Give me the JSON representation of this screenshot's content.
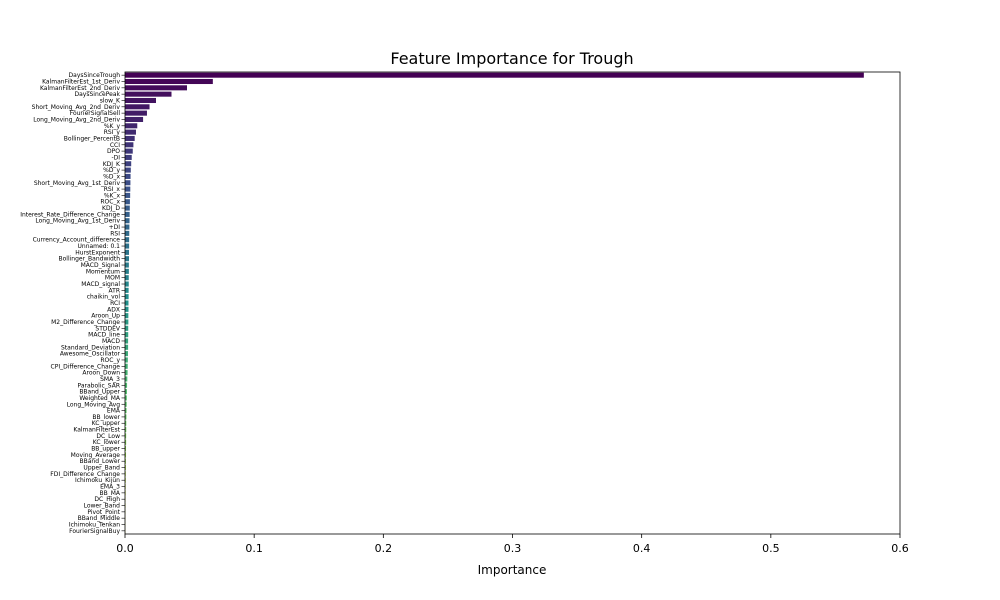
{
  "chart_data": {
    "type": "bar",
    "orientation": "horizontal",
    "title": "Feature Importance for Trough",
    "xlabel": "Importance",
    "ylabel": "",
    "xlim": [
      0,
      0.6
    ],
    "xticks": [
      "0.0",
      "0.1",
      "0.2",
      "0.3",
      "0.4",
      "0.5",
      "0.6"
    ],
    "grid": false,
    "colormap": "viridis",
    "categories": [
      "DaysSinceTrough",
      "KalmanFilterEst_1st_Deriv",
      "KalmanFilterEst_2nd_Deriv",
      "DaysSincePeak",
      "slow_K",
      "Short_Moving_Avg_2nd_Deriv",
      "FourierSignalSell",
      "Long_Moving_Avg_2nd_Deriv",
      "%K_y",
      "RSI_y",
      "Bollinger_PercentB",
      "CCI",
      "DPO",
      "-DI",
      "KDJ_K",
      "%D_y",
      "%D_x",
      "Short_Moving_Avg_1st_Deriv",
      "RSI_x",
      "%K_x",
      "ROC_x",
      "KDJ_D",
      "Interest_Rate_Difference_Change",
      "Long_Moving_Avg_1st_Deriv",
      "+DI",
      "RSI",
      "Currency_Account_difference",
      "Unnamed: 0.1",
      "HurstExponent",
      "Bollinger_Bandwidth",
      "MACD_Signal",
      "Momentum",
      "MOM",
      "MACD_signal",
      "ATR",
      "chaikin_vol",
      "RCI",
      "ADX",
      "Aroon_Up",
      "M2_Difference_Change",
      "STDDEV",
      "MACD_line",
      "MACD",
      "Standard_Deviation",
      "Awesome_Oscillator",
      "ROC_y",
      "CPI_Difference_Change",
      "Aroon_Down",
      "SMA_3",
      "Parabolic_SAR",
      "BBand_Upper",
      "Weighted_MA",
      "Long_Moving_Avg",
      "EMA",
      "BB_lower",
      "KC_upper",
      "KalmanFilterEst",
      "DC_Low",
      "KC_lower",
      "BB_upper",
      "Moving_Average",
      "BBand_Lower",
      "Upper_Band",
      "FDI_Difference_Change",
      "Ichimoku_Kijun",
      "EMA_3",
      "BB_MA",
      "DC_High",
      "Lower_Band",
      "Pivot_Point",
      "BBand_Middle",
      "Ichimoku_Tenkan",
      "FourierSignalBuy"
    ],
    "values": [
      0.572,
      0.068,
      0.048,
      0.036,
      0.024,
      0.019,
      0.017,
      0.014,
      0.0095,
      0.0085,
      0.0075,
      0.0065,
      0.006,
      0.0052,
      0.0048,
      0.0045,
      0.0043,
      0.0042,
      0.0041,
      0.004,
      0.0038,
      0.0037,
      0.0036,
      0.0035,
      0.0034,
      0.0033,
      0.0032,
      0.0032,
      0.0031,
      0.0031,
      0.003,
      0.003,
      0.0029,
      0.0029,
      0.0028,
      0.0028,
      0.0027,
      0.0027,
      0.0026,
      0.0026,
      0.0025,
      0.0025,
      0.0024,
      0.0024,
      0.0023,
      0.0022,
      0.0021,
      0.002,
      0.0018,
      0.0016,
      0.0015,
      0.0014,
      0.0013,
      0.0012,
      0.0011,
      0.001,
      0.001,
      0.0009,
      0.0009,
      0.0008,
      0.0008,
      0.0007,
      0.0007,
      0.0006,
      0.0006,
      0.0005,
      0.0005,
      0.0004,
      0.0004,
      0.0003,
      0.0002,
      0.0001,
      0.0001
    ]
  }
}
